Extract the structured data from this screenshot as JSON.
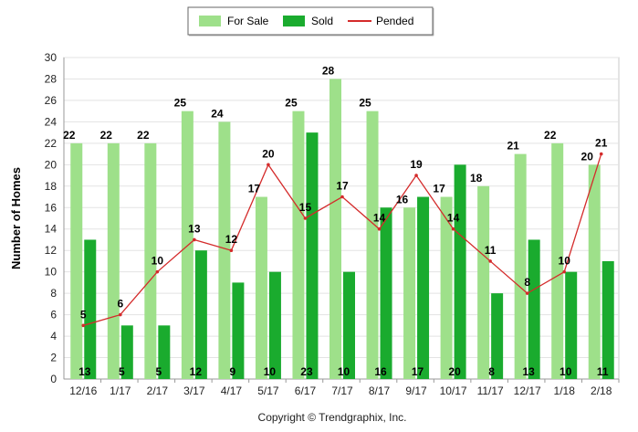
{
  "chart_data": {
    "type": "bar",
    "categories": [
      "12/16",
      "1/17",
      "2/17",
      "3/17",
      "4/17",
      "5/17",
      "6/17",
      "7/17",
      "8/17",
      "9/17",
      "10/17",
      "11/17",
      "12/17",
      "1/18",
      "2/18"
    ],
    "series": [
      {
        "name": "For Sale",
        "type": "bar",
        "color": "#9ee08a",
        "values": [
          22,
          22,
          22,
          25,
          24,
          17,
          25,
          28,
          25,
          16,
          17,
          18,
          21,
          22,
          20
        ]
      },
      {
        "name": "Sold",
        "type": "bar",
        "color": "#1aab2e",
        "values": [
          13,
          5,
          5,
          12,
          9,
          10,
          23,
          10,
          16,
          17,
          20,
          8,
          13,
          10,
          11
        ]
      },
      {
        "name": "Pended",
        "type": "line",
        "color": "#d42b2b",
        "values": [
          5,
          6,
          10,
          13,
          12,
          20,
          15,
          17,
          14,
          19,
          14,
          11,
          8,
          10,
          21
        ]
      }
    ],
    "ylabel": "Number of Homes",
    "xlabel": "",
    "ylim": [
      0,
      30
    ],
    "yticks": [
      "0",
      "2",
      "4",
      "6",
      "8",
      "10",
      "12",
      "14",
      "16",
      "18",
      "20",
      "22",
      "24",
      "26",
      "28",
      "30"
    ],
    "grid": true,
    "legend_position": "top-center"
  },
  "copyright": "Copyright © Trendgraphix, Inc."
}
